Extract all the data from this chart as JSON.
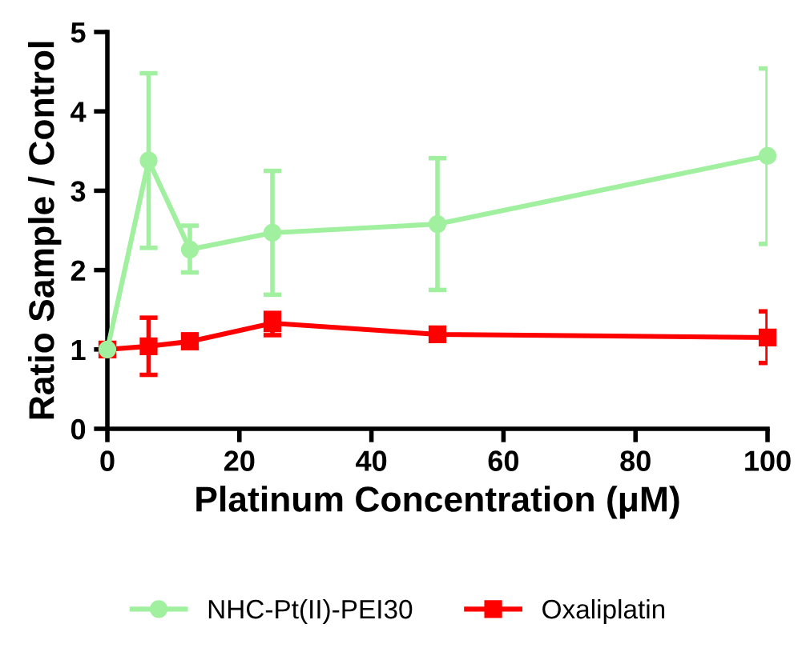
{
  "chart_data": {
    "type": "line",
    "xlabel": "Platinum Concentration (μM)",
    "ylabel": "Ratio Sample / Control",
    "x": [
      0,
      6.25,
      12.5,
      25,
      50,
      100
    ],
    "series": [
      {
        "name": "NHC-Pt(II)-PEI30",
        "color": "#a0f0a0",
        "marker": "circle",
        "values": [
          1,
          3.38,
          2.26,
          2.47,
          2.58,
          3.44
        ],
        "errors": [
          null,
          [
            2.28,
            4.48
          ],
          [
            1.97,
            2.56
          ],
          [
            1.69,
            3.25
          ],
          [
            1.75,
            3.41
          ],
          [
            2.33,
            4.54
          ]
        ]
      },
      {
        "name": "Oxaliplatin",
        "color": "#ff0000",
        "marker": "square",
        "values": [
          1,
          1.04,
          1.1,
          1.33,
          1.19,
          1.15
        ],
        "errors": [
          null,
          [
            0.68,
            1.4
          ],
          [
            1.02,
            1.19
          ],
          [
            1.18,
            1.46
          ],
          null,
          [
            0.83,
            1.48
          ]
        ]
      }
    ],
    "xlim": [
      0,
      100
    ],
    "xticks": [
      0,
      20,
      40,
      60,
      80,
      100
    ],
    "ylim": [
      0,
      5
    ],
    "yticks": [
      0,
      1,
      2,
      3,
      4,
      5
    ],
    "grid": false,
    "legend": "bottom",
    "line_style": "solid"
  }
}
